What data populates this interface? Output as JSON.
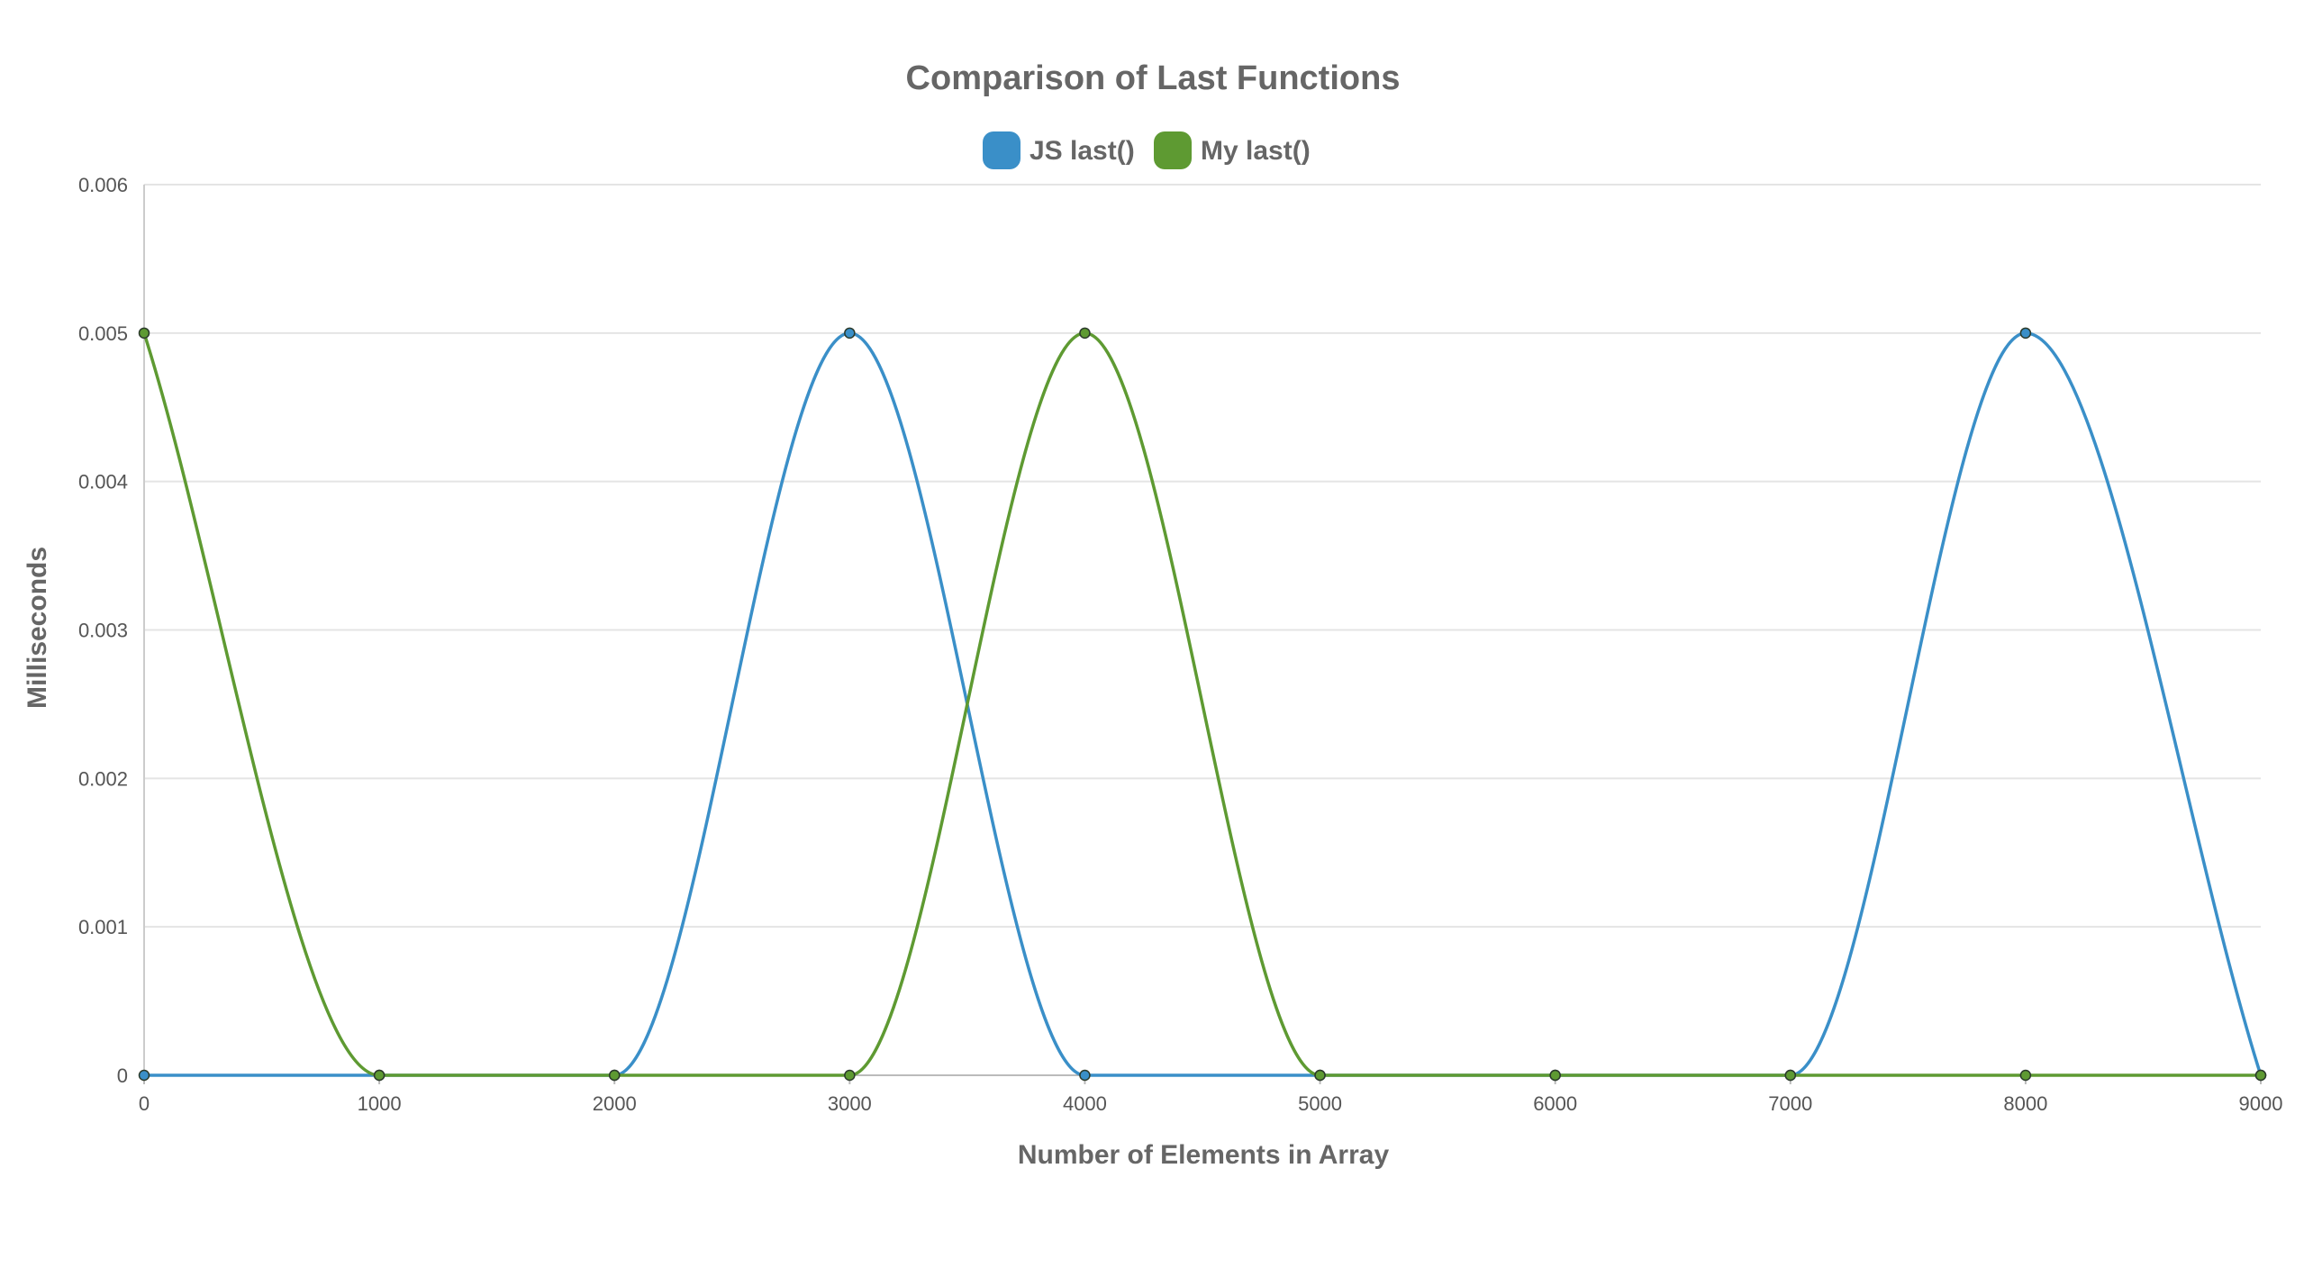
{
  "chart_data": {
    "type": "line",
    "title": "Comparison of Last Functions",
    "xlabel": "Number of Elements in Array",
    "ylabel": "Milliseconds",
    "x": [
      0,
      1000,
      2000,
      3000,
      4000,
      5000,
      6000,
      7000,
      8000,
      9000
    ],
    "xlim": [
      0,
      9000
    ],
    "ylim": [
      0,
      0.006
    ],
    "x_ticks": [
      "0",
      "1000",
      "2000",
      "3000",
      "4000",
      "5000",
      "6000",
      "7000",
      "8000",
      "9000"
    ],
    "y_ticks": [
      "0",
      "0.001",
      "0.002",
      "0.003",
      "0.004",
      "0.005",
      "0.006"
    ],
    "grid": true,
    "legend_position": "top-center",
    "series": [
      {
        "name": "JS last()",
        "color": "#3a8fc8",
        "values": [
          0,
          0,
          0,
          0.005,
          0,
          0,
          0,
          0,
          0.005,
          0
        ]
      },
      {
        "name": "My last()",
        "color": "#5e9a32",
        "values": [
          0.005,
          0,
          0,
          0,
          0.005,
          0,
          0,
          0,
          0,
          0
        ]
      }
    ]
  }
}
